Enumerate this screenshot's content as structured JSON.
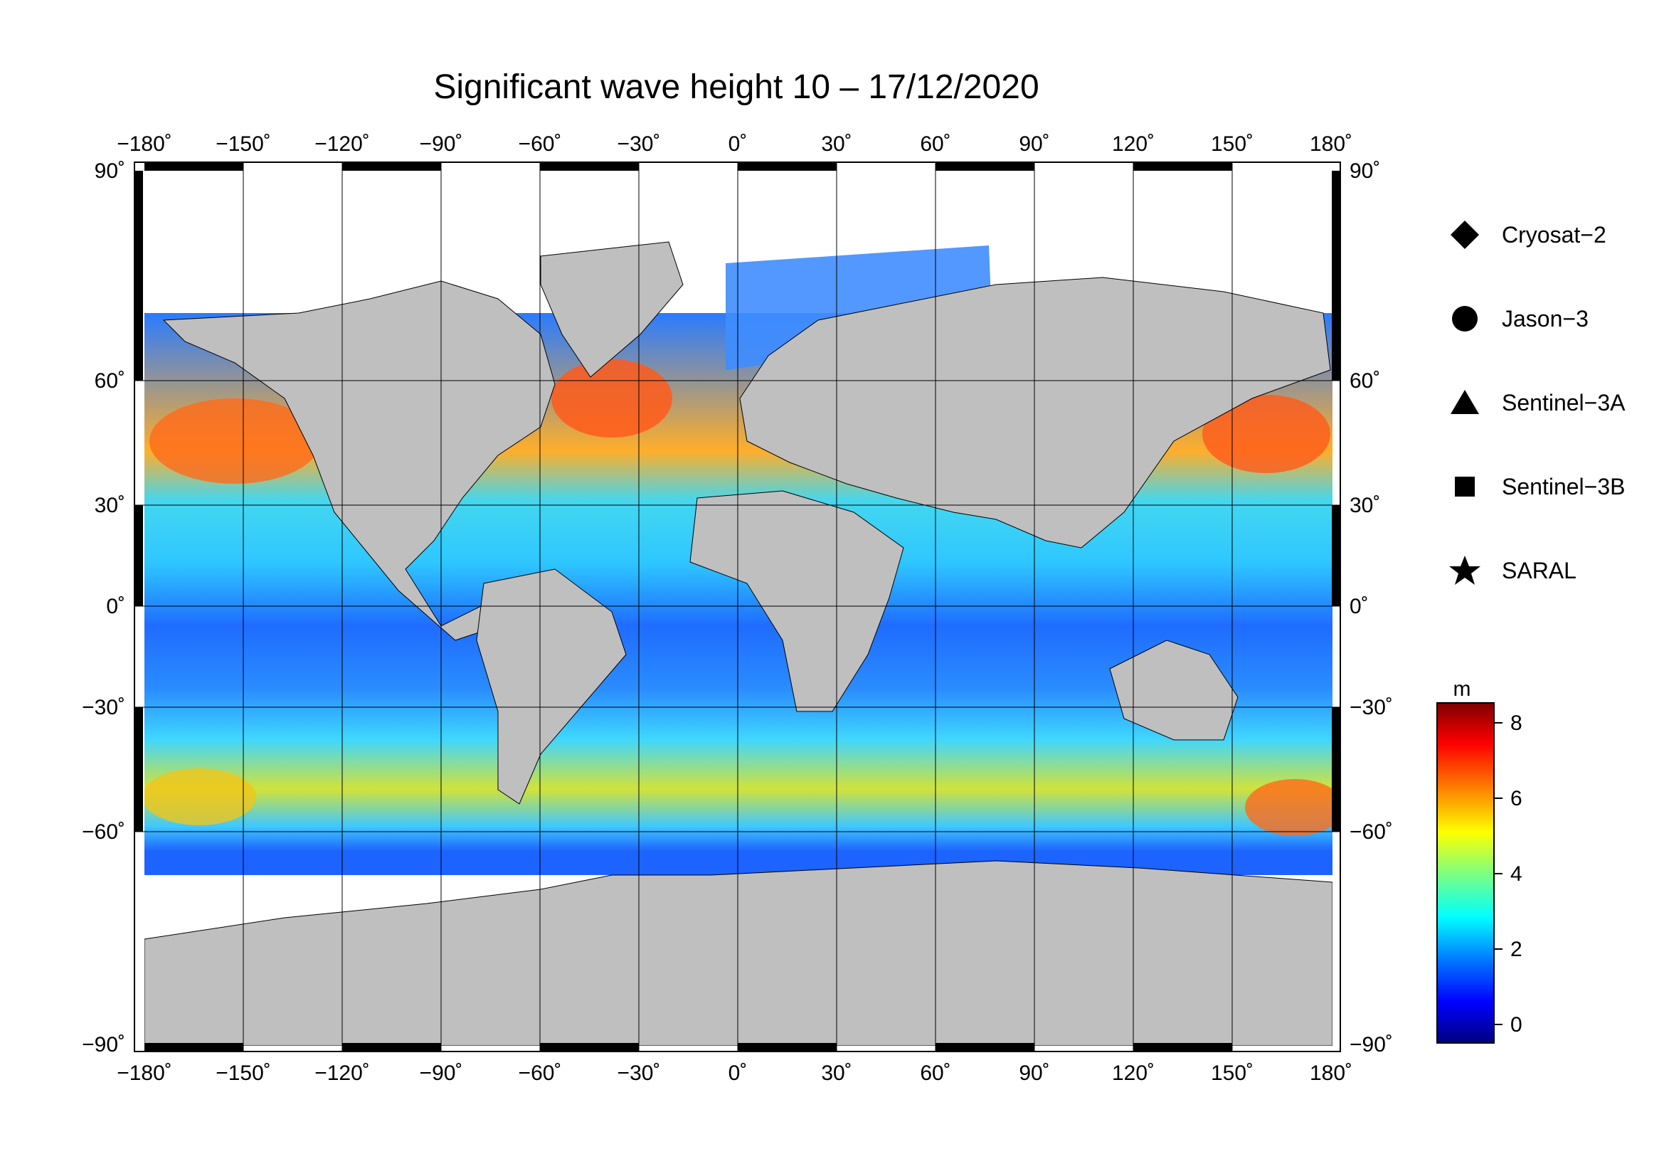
{
  "title": "Significant wave height 10 – 17/12/2020",
  "map": {
    "lon_ticks": [
      "−180˚",
      "−150˚",
      "−120˚",
      "−90˚",
      "−60˚",
      "−30˚",
      "0˚",
      "30˚",
      "60˚",
      "90˚",
      "120˚",
      "150˚",
      "180˚"
    ],
    "lat_ticks": [
      "90˚",
      "60˚",
      "30˚",
      "0˚",
      "−30˚",
      "−60˚",
      "−90˚"
    ],
    "lon_range": [
      -180,
      180
    ],
    "lat_range": [
      -90,
      90
    ],
    "grid": true,
    "land_color": "#bfbfbf",
    "ice_color": "#ffffff"
  },
  "legend": {
    "items": [
      {
        "label": "Cryosat−2",
        "symbol": "diamond"
      },
      {
        "label": "Jason−3",
        "symbol": "circle"
      },
      {
        "label": "Sentinel−3A",
        "symbol": "triangle"
      },
      {
        "label": "Sentinel−3B",
        "symbol": "square"
      },
      {
        "label": "SARAL",
        "symbol": "star"
      }
    ]
  },
  "colorbar": {
    "unit": "m",
    "ticks": [
      "8",
      "6",
      "4",
      "2",
      "0"
    ],
    "range": [
      -0.5,
      8.5
    ],
    "colors": [
      "#00007f",
      "#0000ff",
      "#007fff",
      "#00ffff",
      "#7fff7f",
      "#ffff00",
      "#ff7f00",
      "#ff0000",
      "#7f0000"
    ]
  }
}
